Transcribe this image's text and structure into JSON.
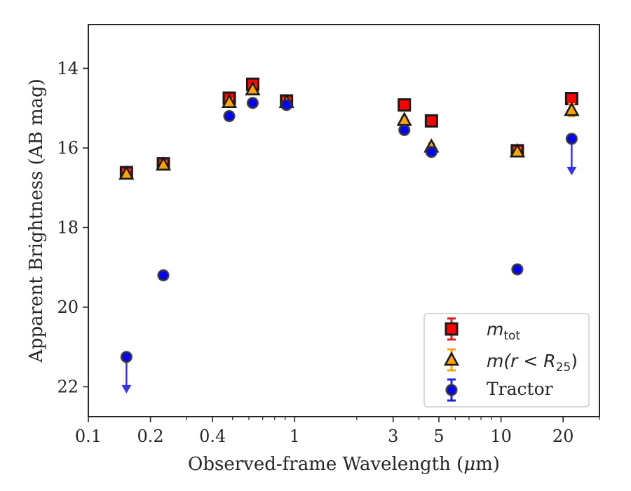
{
  "chart_data": {
    "type": "scatter",
    "xlabel_main": "Observed-frame Wavelength (",
    "xlabel_unit_mu": "μ",
    "xlabel_unit_rest": "m)",
    "ylabel": "Apparent Brightness (AB mag)",
    "x_scale": "log",
    "xlim": [
      0.1,
      30
    ],
    "ylim": [
      12.9,
      22.75
    ],
    "y_inverted": true,
    "x_ticks": [
      {
        "value": 0.1,
        "label": "0.1"
      },
      {
        "value": 0.2,
        "label": "0.2"
      },
      {
        "value": 0.4,
        "label": "0.4"
      },
      {
        "value": 1,
        "label": "1"
      },
      {
        "value": 3,
        "label": "3"
      },
      {
        "value": 5,
        "label": "5"
      },
      {
        "value": 10,
        "label": "10"
      },
      {
        "value": 20,
        "label": "20"
      }
    ],
    "x_minor_ticks": [
      0.3,
      0.5,
      0.6,
      0.7,
      0.8,
      0.9,
      2,
      4,
      6,
      7,
      8,
      9,
      30
    ],
    "y_ticks": [
      {
        "value": 14,
        "label": "14"
      },
      {
        "value": 16,
        "label": "16"
      },
      {
        "value": 18,
        "label": "18"
      },
      {
        "value": 20,
        "label": "20"
      },
      {
        "value": 22,
        "label": "22"
      }
    ],
    "grid": false,
    "legend_position": "lower-right",
    "series": [
      {
        "name_math": "m",
        "name_sub": "tot",
        "marker": "square",
        "face_color": "#ff0000",
        "edge_color": "#1a1a1a",
        "errbar_color": "#d62020",
        "points": [
          {
            "x": 0.153,
            "y": 16.62,
            "err": 0.06
          },
          {
            "x": 0.231,
            "y": 16.4,
            "err": 0.05
          },
          {
            "x": 0.482,
            "y": 14.75,
            "err": 0.05
          },
          {
            "x": 0.626,
            "y": 14.4,
            "err": 0.05
          },
          {
            "x": 0.913,
            "y": 14.82,
            "err": 0.05
          },
          {
            "x": 3.4,
            "y": 14.92,
            "err": 0.03
          },
          {
            "x": 4.6,
            "y": 15.32,
            "err": 0.03
          },
          {
            "x": 12.0,
            "y": 16.07,
            "err": 0.05
          },
          {
            "x": 22.0,
            "y": 14.76,
            "err": 0.05
          }
        ]
      },
      {
        "name_math": "m(r < R",
        "name_sub": "25",
        "name_tail": ")",
        "marker": "triangle",
        "face_color": "#ffa500",
        "edge_color": "#1a1a1a",
        "errbar_color": "#ffa500",
        "points": [
          {
            "x": 0.153,
            "y": 16.65,
            "err": 0.05
          },
          {
            "x": 0.231,
            "y": 16.42,
            "err": 0.05
          },
          {
            "x": 0.482,
            "y": 14.85,
            "err": 0.05
          },
          {
            "x": 0.626,
            "y": 14.53,
            "err": 0.05
          },
          {
            "x": 0.913,
            "y": 14.85,
            "err": 0.05
          },
          {
            "x": 3.4,
            "y": 15.3,
            "err": 0.04
          },
          {
            "x": 4.6,
            "y": 15.97,
            "err": 0.05
          },
          {
            "x": 12.0,
            "y": 16.09,
            "err": 0.05
          },
          {
            "x": 22.0,
            "y": 15.05,
            "err": 0.12
          }
        ]
      },
      {
        "name": "Tractor",
        "marker": "circle",
        "face_color": "#0000ff",
        "edge_color": "#333333",
        "errbar_color": "#2020e0",
        "points": [
          {
            "x": 0.153,
            "y": 21.25,
            "err": 0.05,
            "upper_limit": true
          },
          {
            "x": 0.231,
            "y": 19.2,
            "err": 0.05
          },
          {
            "x": 0.482,
            "y": 15.2,
            "err": 0.05
          },
          {
            "x": 0.626,
            "y": 14.87,
            "err": 0.05
          },
          {
            "x": 0.913,
            "y": 14.92,
            "err": 0.05
          },
          {
            "x": 3.4,
            "y": 15.55,
            "err": 0.05
          },
          {
            "x": 4.6,
            "y": 16.1,
            "err": 0.05
          },
          {
            "x": 12.0,
            "y": 19.05,
            "err": 0.05
          },
          {
            "x": 22.0,
            "y": 15.77,
            "err": 0.05,
            "upper_limit": true
          }
        ]
      }
    ]
  }
}
